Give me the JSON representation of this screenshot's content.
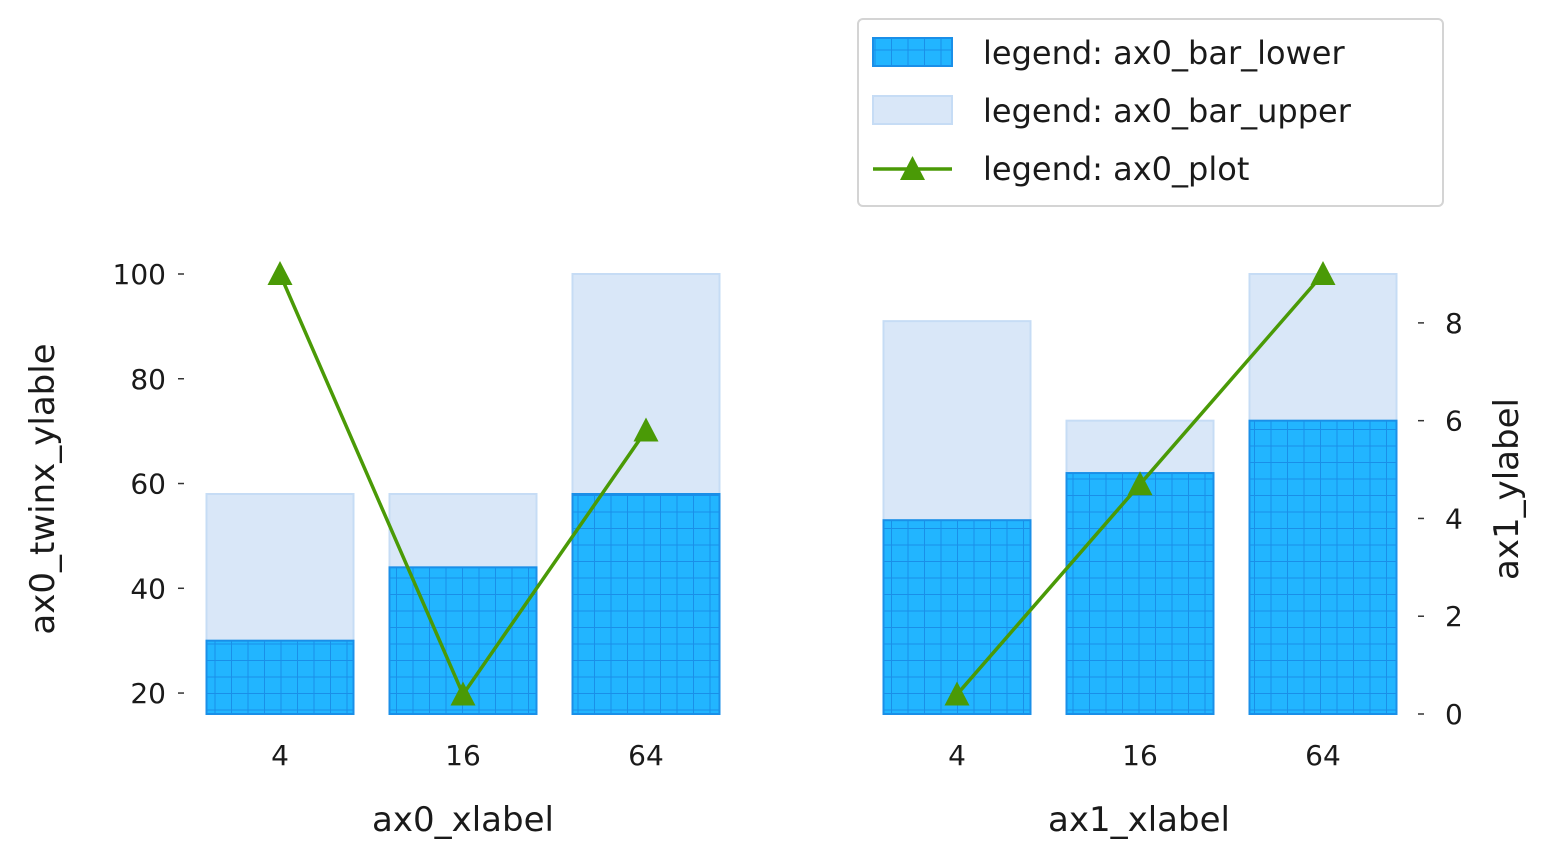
{
  "colors": {
    "bar_lower_fill": "#22b5ff",
    "bar_lower_hatch": "#1a8fe8",
    "bar_upper_fill": "#d9e7f8",
    "bar_upper_edge": "#c6dcf5",
    "line": "#4a9a06",
    "tick": "#333333"
  },
  "legend": {
    "placement": "upper right, above plots",
    "entries": [
      {
        "key": "bar_lower",
        "label": "legend: ax0_bar_lower"
      },
      {
        "key": "bar_upper",
        "label": "legend: ax0_bar_upper"
      },
      {
        "key": "plot",
        "label": "legend: ax0_plot"
      }
    ]
  },
  "chart_data": [
    {
      "type": "bar",
      "id": "ax0",
      "categories": [
        "4",
        "16",
        "64"
      ],
      "xlabel": "ax0_xlabel",
      "ylabel": "ax0_twinx_ylable",
      "ylabel_side": "left",
      "bar_ylim": [
        16,
        100
      ],
      "bar_yticks": [
        20,
        40,
        60,
        80,
        100
      ],
      "series": [
        {
          "name": "legend: ax0_bar_lower",
          "kind": "bar",
          "hatch": "grid",
          "values": [
            30,
            44,
            58
          ]
        },
        {
          "name": "legend: ax0_bar_upper",
          "kind": "bar",
          "values": [
            58,
            58,
            100
          ]
        }
      ],
      "line": {
        "name": "legend: ax0_plot",
        "marker": "triangle",
        "ylim": [
          0,
          9
        ],
        "values": [
          9.0,
          0.4,
          5.8
        ]
      }
    },
    {
      "type": "bar",
      "id": "ax1",
      "categories": [
        "4",
        "16",
        "64"
      ],
      "xlabel": "ax1_xlabel",
      "ylabel": "ax1_ylabel",
      "ylabel_side": "right",
      "bar_ylim": [
        16,
        100
      ],
      "series": [
        {
          "kind": "bar",
          "hatch": "grid",
          "values": [
            53,
            62,
            72
          ]
        },
        {
          "kind": "bar",
          "values": [
            91,
            72,
            100
          ]
        }
      ],
      "line": {
        "marker": "triangle",
        "ylim": [
          0,
          9
        ],
        "yticks": [
          0,
          2,
          4,
          6,
          8
        ],
        "values": [
          0.4,
          4.7,
          9.0
        ]
      }
    }
  ]
}
